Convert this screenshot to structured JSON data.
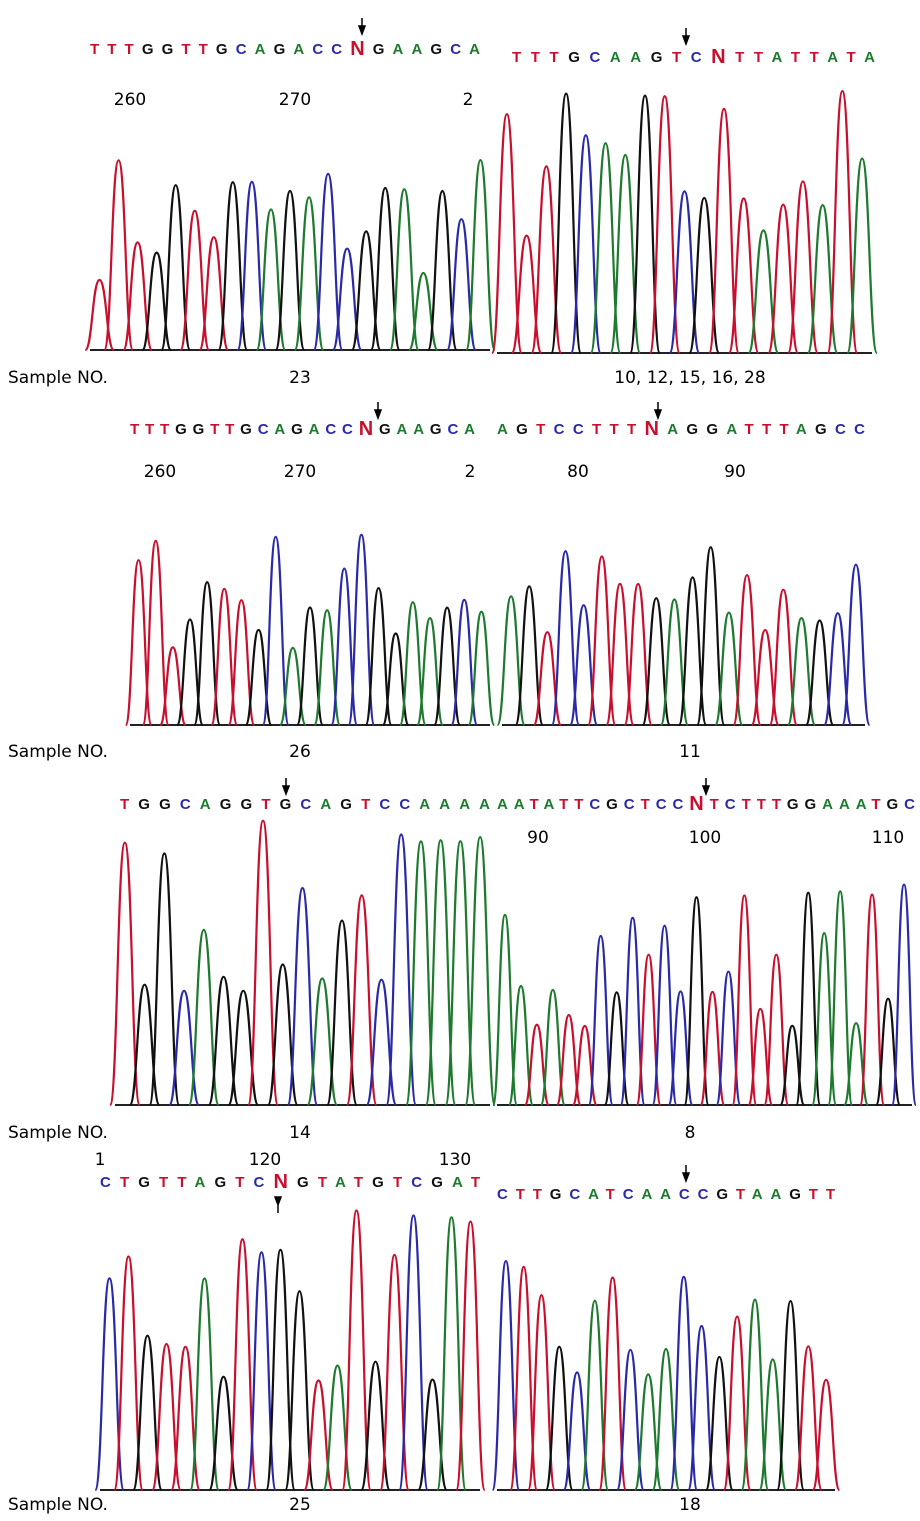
{
  "panels": [
    {
      "sequence": "TTTGGTTGCAGACCNGAAGCA",
      "positions": [
        "260",
        "270",
        "2"
      ]
    },
    {
      "sequence": "TTTGCAAGTCNTTATTATA",
      "positions": []
    },
    {
      "sequence": "TTTGGTTGCAGACCNGAAGCA",
      "positions": [
        "260",
        "270",
        "2"
      ]
    },
    {
      "sequence": "AGTCCTTTNAGGATTTAGCC",
      "positions": [
        "80",
        "90"
      ]
    },
    {
      "sequence": "TGGCAGGTGCAGTCCAAAA",
      "positions": []
    },
    {
      "sequence": "AATATTCGCTCCNTCTTTGGAAATGC",
      "positions": [
        "90",
        "100",
        "110"
      ]
    },
    {
      "sequence": "CTGTTAGTCNGTATGTCGAT",
      "positions": [
        "1",
        "120",
        "130"
      ]
    },
    {
      "sequence": "CTTGCATCAACCGTAAGTT",
      "positions": []
    }
  ],
  "rows": [
    {
      "label": "Sample NO.",
      "samples": [
        "23",
        "10, 12, 15, 16, 28"
      ]
    },
    {
      "label": "Sample NO.",
      "samples": [
        "26",
        "11"
      ]
    },
    {
      "label": "Sample NO.",
      "samples": [
        "14",
        "8"
      ]
    },
    {
      "label": "Sample NO.",
      "samples": [
        "25",
        "18"
      ]
    }
  ]
}
